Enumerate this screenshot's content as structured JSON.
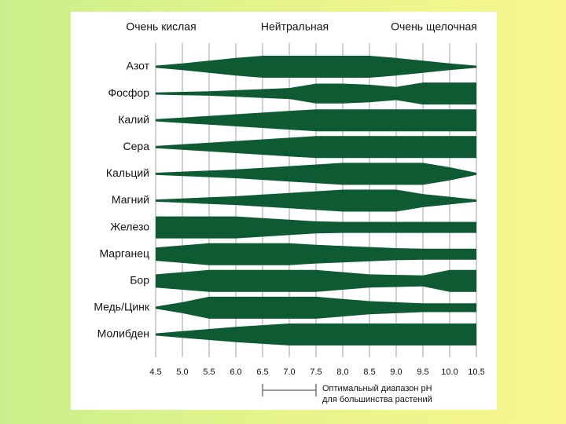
{
  "chart_data": {
    "type": "band",
    "zones": [
      "Очень кислая",
      "Нейтральная",
      "Очень щелочная"
    ],
    "x": [
      4.5,
      5.0,
      5.5,
      6.0,
      6.5,
      7.0,
      7.5,
      8.0,
      8.5,
      9.0,
      9.5,
      10.0,
      10.5
    ],
    "xlim": [
      4.5,
      10.5
    ],
    "xticks": [
      {
        "value": 4.5,
        "label": "4.5"
      },
      {
        "value": 5.0,
        "label": "5.0"
      },
      {
        "value": 5.5,
        "label": "5.5"
      },
      {
        "value": 6.0,
        "label": "6.0"
      },
      {
        "value": 6.5,
        "label": "6.5"
      },
      {
        "value": 7.0,
        "label": "7.0"
      },
      {
        "value": 7.5,
        "label": "7.5"
      },
      {
        "value": 8.0,
        "label": "8.0"
      },
      {
        "value": 8.5,
        "label": "8.5"
      },
      {
        "value": 9.0,
        "label": "9.0"
      },
      {
        "value": 9.5,
        "label": "9.5"
      },
      {
        "value": 10.0,
        "label": "10.0"
      },
      {
        "value": 10.5,
        "label": "10.5"
      }
    ],
    "grid": true,
    "color": "#0e5a33",
    "series": [
      {
        "name": "Азот",
        "values": [
          0.1,
          0.3,
          0.55,
          0.8,
          1,
          1,
          1,
          1,
          1,
          0.8,
          0.55,
          0.3,
          0.1
        ]
      },
      {
        "name": "Фосфор",
        "values": [
          0.1,
          0.15,
          0.2,
          0.3,
          0.4,
          0.5,
          0.9,
          0.9,
          0.8,
          0.6,
          1,
          1,
          1
        ]
      },
      {
        "name": "Калий",
        "values": [
          0.1,
          0.25,
          0.4,
          0.55,
          0.7,
          0.85,
          1,
          1,
          1,
          1,
          1,
          1,
          1
        ]
      },
      {
        "name": "Сера",
        "values": [
          0.1,
          0.25,
          0.4,
          0.55,
          0.7,
          0.85,
          1,
          1,
          1,
          1,
          1,
          1,
          1
        ]
      },
      {
        "name": "Кальций",
        "values": [
          0.1,
          0.2,
          0.3,
          0.4,
          0.55,
          0.7,
          0.85,
          1,
          1,
          1,
          1,
          0.6,
          0.1
        ]
      },
      {
        "name": "Магний",
        "values": [
          0.1,
          0.2,
          0.3,
          0.4,
          0.55,
          0.7,
          0.85,
          1,
          1,
          1,
          0.6,
          0.35,
          0.1
        ]
      },
      {
        "name": "Железо",
        "values": [
          1,
          1,
          1,
          1,
          0.85,
          0.7,
          0.55,
          0.5,
          0.5,
          0.5,
          0.5,
          0.5,
          0.5
        ]
      },
      {
        "name": "Марганец",
        "values": [
          0.6,
          0.8,
          1,
          1,
          1,
          1,
          0.85,
          0.75,
          0.65,
          0.55,
          0.5,
          0.5,
          0.5
        ]
      },
      {
        "name": "Бор",
        "values": [
          0.6,
          0.8,
          1,
          1,
          1,
          1,
          1,
          0.8,
          0.6,
          0.55,
          0.5,
          1,
          1
        ]
      },
      {
        "name": "Медь/Цинк",
        "values": [
          0.1,
          0.5,
          1,
          1,
          1,
          1,
          1,
          0.8,
          0.6,
          0.5,
          0.4,
          0.4,
          0.4
        ]
      },
      {
        "name": "Молибден",
        "values": [
          0.1,
          0.3,
          0.5,
          0.7,
          0.85,
          1,
          1,
          1,
          1,
          1,
          1,
          1,
          1
        ]
      }
    ],
    "optimal_range": [
      6.5,
      7.5
    ],
    "note": [
      "Оптимальный диапазон pH",
      "для большинства растений"
    ]
  }
}
